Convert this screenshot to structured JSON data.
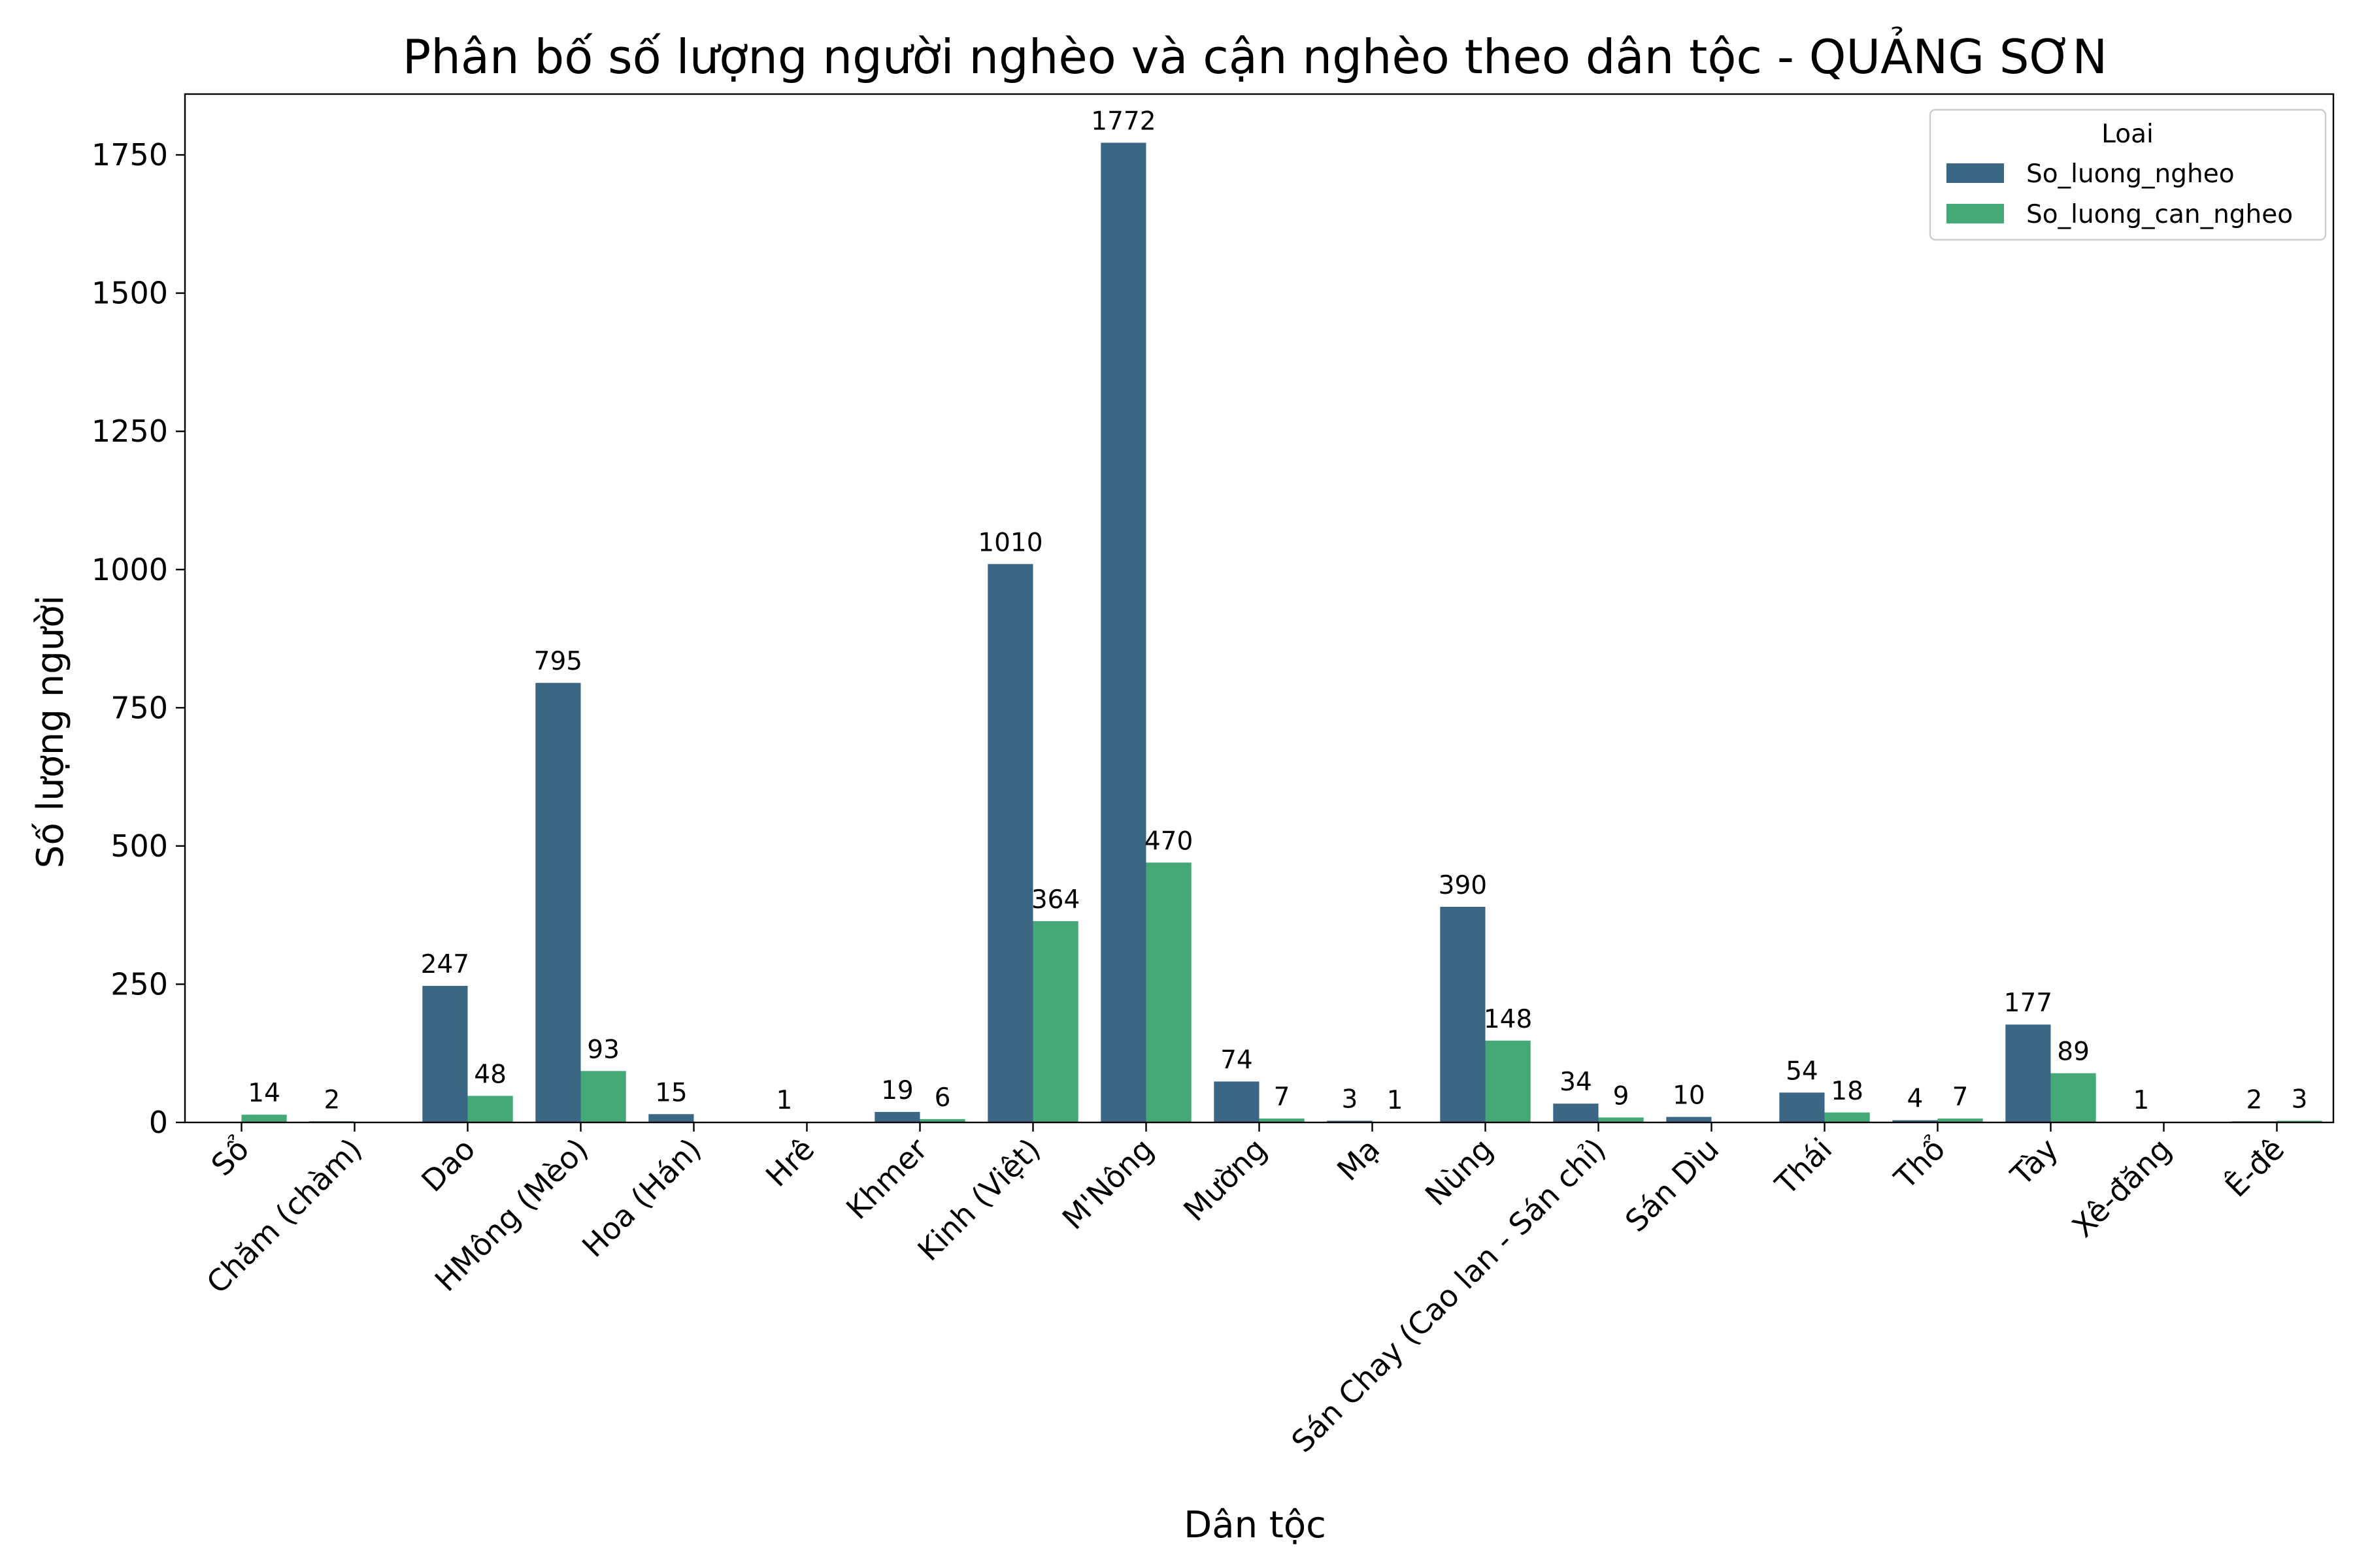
{
  "chart_data": {
    "type": "bar",
    "title": "Phân bố số lượng người nghèo và cận nghèo theo dân tộc - QUẢNG SƠN",
    "xlabel": "Dân tộc",
    "ylabel": "Số lượng người",
    "ylim": [
      0,
      1860
    ],
    "yticks": [
      0,
      250,
      500,
      750,
      1000,
      1250,
      1500,
      1750
    ],
    "grid": false,
    "categories": [
      "Sổ",
      "Chăm (chàm)",
      "Dao",
      "HMông (Mèo)",
      "Hoa (Hán)",
      "Hrê",
      "Khmer",
      "Kinh (Việt)",
      "M'Nông",
      "Mường",
      "Mạ",
      "Nùng",
      "Sán Chay (Cao lan - Sán chỉ)",
      "Sán Dìu",
      "Thái",
      "Thổ",
      "Tày",
      "Xê-đăng",
      "Ê-đê"
    ],
    "legend": {
      "title": "Loai",
      "placement": "top-right"
    },
    "series": [
      {
        "name": "So_luong_ngheo",
        "color": "#3b6785",
        "values": [
          null,
          2,
          247,
          795,
          15,
          1,
          19,
          1010,
          1772,
          74,
          3,
          390,
          34,
          10,
          54,
          4,
          177,
          1,
          2
        ]
      },
      {
        "name": "So_luong_can_ngheo",
        "color": "#44a877",
        "values": [
          14,
          null,
          48,
          93,
          null,
          null,
          6,
          364,
          470,
          7,
          1,
          148,
          9,
          null,
          18,
          7,
          89,
          null,
          3
        ]
      }
    ]
  }
}
